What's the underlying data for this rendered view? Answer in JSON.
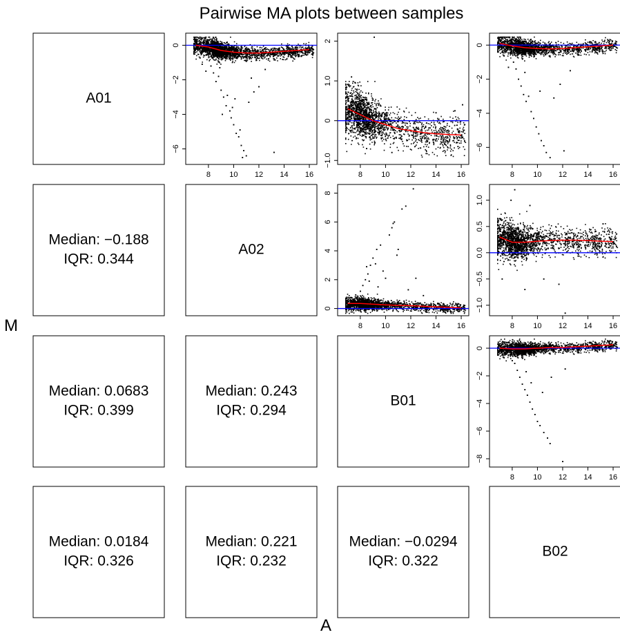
{
  "title": "Pairwise MA plots between samples",
  "xlabel": "A",
  "ylabel": "M",
  "samples": [
    "A01",
    "A02",
    "B01",
    "B02"
  ],
  "stats": [
    {
      "row": 1,
      "col": 0,
      "median": "Median: −0.188",
      "iqr": "IQR: 0.344"
    },
    {
      "row": 2,
      "col": 0,
      "median": "Median: 0.0683",
      "iqr": "IQR: 0.399"
    },
    {
      "row": 2,
      "col": 1,
      "median": "Median: 0.243",
      "iqr": "IQR: 0.294"
    },
    {
      "row": 3,
      "col": 0,
      "median": "Median: 0.0184",
      "iqr": "IQR: 0.326"
    },
    {
      "row": 3,
      "col": 1,
      "median": "Median: 0.221",
      "iqr": "IQR: 0.232"
    },
    {
      "row": 3,
      "col": 2,
      "median": "Median: −0.0294",
      "iqr": "IQR: 0.322"
    }
  ],
  "colors": {
    "points": "#000000",
    "loess": "#ff0000",
    "zero_line": "#0000ff",
    "frame": "#000000"
  },
  "chart_data": [
    {
      "type": "scatter",
      "panel": "A01 vs A02",
      "row": 0,
      "col": 1,
      "xlim": [
        6.2,
        16.6
      ],
      "ylim": [
        -6.9,
        0.7
      ],
      "x_ticks": [
        8,
        10,
        12,
        14,
        16
      ],
      "y_ticks": [
        0,
        -2,
        -4,
        -6
      ],
      "zero_line": 0,
      "loess": {
        "x": [
          7,
          8,
          9,
          10,
          11,
          12,
          13,
          14,
          15,
          16
        ],
        "y": [
          0.0,
          -0.1,
          -0.3,
          -0.4,
          -0.45,
          -0.45,
          -0.4,
          -0.35,
          -0.3,
          -0.25
        ]
      },
      "cloud": {
        "x_min": 6.8,
        "x_max": 16.3,
        "x_mode": 8.2,
        "center": -0.188,
        "spread": 0.34,
        "down_tail": -6.5,
        "up_tail": 0.5,
        "count": 2600
      },
      "outliers": [
        [
          8.2,
          -1.2
        ],
        [
          8.4,
          -1.6
        ],
        [
          8.6,
          -2.1
        ],
        [
          8.8,
          -1.8
        ],
        [
          9.0,
          -2.6
        ],
        [
          9.2,
          -3.0
        ],
        [
          9.4,
          -3.5
        ],
        [
          9.5,
          -2.9
        ],
        [
          9.7,
          -3.8
        ],
        [
          9.8,
          -4.2
        ],
        [
          9.9,
          -3.6
        ],
        [
          10.0,
          -4.6
        ],
        [
          10.2,
          -5.1
        ],
        [
          10.4,
          -5.3
        ],
        [
          10.5,
          -4.9
        ],
        [
          10.6,
          -5.8
        ],
        [
          10.8,
          -6.1
        ],
        [
          11.0,
          -6.4
        ],
        [
          11.2,
          -3.3
        ],
        [
          11.6,
          -2.7
        ],
        [
          12.0,
          -2.4
        ],
        [
          13.2,
          -6.2
        ],
        [
          10.1,
          -3.1
        ],
        [
          9.1,
          -4.0
        ],
        [
          11.4,
          -1.9
        ],
        [
          12.5,
          -1.4
        ],
        [
          8.9,
          -1.3
        ],
        [
          10.7,
          -6.5
        ],
        [
          7.8,
          -1.5
        ],
        [
          7.5,
          -1.1
        ]
      ]
    },
    {
      "type": "scatter",
      "panel": "A01 vs B01",
      "row": 0,
      "col": 2,
      "xlim": [
        6.2,
        16.6
      ],
      "ylim": [
        -1.1,
        2.2
      ],
      "x_ticks": [
        8,
        10,
        12,
        14,
        16
      ],
      "y_ticks": [
        -1.0,
        0.0,
        1.0,
        2.0
      ],
      "zero_line": 0,
      "loess": {
        "x": [
          7,
          8,
          9,
          10,
          11,
          12,
          13,
          14,
          15,
          16
        ],
        "y": [
          0.3,
          0.15,
          0.0,
          -0.1,
          -0.2,
          -0.25,
          -0.3,
          -0.33,
          -0.35,
          -0.36
        ]
      },
      "cloud": {
        "x_min": 6.8,
        "x_max": 16.3,
        "x_mode": 7.6,
        "center": 0.0683,
        "spread": 0.4,
        "down_tail": -0.9,
        "up_tail": 1.0,
        "count": 2600
      },
      "outliers": [
        [
          9.1,
          2.1
        ],
        [
          7.3,
          1.1
        ],
        [
          7.6,
          0.95
        ],
        [
          14.0,
          0.2
        ],
        [
          15.5,
          0.25
        ],
        [
          16.1,
          0.4
        ],
        [
          10.5,
          -0.8
        ],
        [
          8.5,
          -0.7
        ]
      ]
    },
    {
      "type": "scatter",
      "panel": "A01 vs B02",
      "row": 0,
      "col": 3,
      "xlim": [
        6.2,
        16.6
      ],
      "ylim": [
        -7.0,
        0.7
      ],
      "x_ticks": [
        8,
        10,
        12,
        14,
        16
      ],
      "y_ticks": [
        0,
        -2,
        -4,
        -6
      ],
      "zero_line": 0,
      "loess": {
        "x": [
          7,
          8,
          9,
          10,
          11,
          12,
          13,
          14,
          15,
          16
        ],
        "y": [
          0.1,
          -0.05,
          -0.15,
          -0.2,
          -0.22,
          -0.2,
          -0.15,
          -0.1,
          -0.05,
          0.0
        ]
      },
      "cloud": {
        "x_min": 6.8,
        "x_max": 16.3,
        "x_mode": 8.2,
        "center": 0.0184,
        "spread": 0.33,
        "down_tail": -6.5,
        "up_tail": 0.5,
        "count": 2600
      },
      "outliers": [
        [
          8.1,
          -1.0
        ],
        [
          8.3,
          -1.4
        ],
        [
          8.5,
          -2.0
        ],
        [
          8.7,
          -2.4
        ],
        [
          8.9,
          -2.9
        ],
        [
          9.1,
          -3.3
        ],
        [
          9.3,
          -3.0
        ],
        [
          9.5,
          -3.9
        ],
        [
          9.7,
          -4.3
        ],
        [
          9.9,
          -4.8
        ],
        [
          10.1,
          -5.2
        ],
        [
          10.3,
          -5.6
        ],
        [
          10.5,
          -5.9
        ],
        [
          10.7,
          -6.3
        ],
        [
          11.0,
          -6.6
        ],
        [
          12.1,
          -6.2
        ],
        [
          11.3,
          -3.1
        ],
        [
          11.8,
          -2.3
        ],
        [
          10.2,
          -2.7
        ],
        [
          9.0,
          -1.6
        ],
        [
          12.6,
          -1.5
        ],
        [
          7.7,
          -1.3
        ]
      ]
    },
    {
      "type": "scatter",
      "panel": "A02 vs B01",
      "row": 1,
      "col": 2,
      "xlim": [
        6.2,
        16.6
      ],
      "ylim": [
        -0.5,
        8.6
      ],
      "x_ticks": [
        8,
        10,
        12,
        14,
        16
      ],
      "y_ticks": [
        0,
        2,
        4,
        6,
        8
      ],
      "zero_line": 0,
      "loess": {
        "x": [
          7,
          8,
          9,
          10,
          11,
          12,
          13,
          14,
          15,
          16
        ],
        "y": [
          0.35,
          0.35,
          0.3,
          0.25,
          0.22,
          0.2,
          0.15,
          0.12,
          0.08,
          0.05
        ]
      },
      "cloud": {
        "x_min": 6.8,
        "x_max": 16.3,
        "x_mode": 7.8,
        "center": 0.243,
        "spread": 0.29,
        "down_tail": -0.3,
        "up_tail": 1.8,
        "count": 2600
      },
      "outliers": [
        [
          8.0,
          1.2
        ],
        [
          8.2,
          1.6
        ],
        [
          8.4,
          2.0
        ],
        [
          8.6,
          2.4
        ],
        [
          8.8,
          3.0
        ],
        [
          9.0,
          3.5
        ],
        [
          9.2,
          3.1
        ],
        [
          9.3,
          4.1
        ],
        [
          8.5,
          2.9
        ],
        [
          9.6,
          4.4
        ],
        [
          9.8,
          2.6
        ],
        [
          10.3,
          5.1
        ],
        [
          10.5,
          5.6
        ],
        [
          10.7,
          6.0
        ],
        [
          10.6,
          5.9
        ],
        [
          11.3,
          6.9
        ],
        [
          11.6,
          7.1
        ],
        [
          12.2,
          8.3
        ],
        [
          11.0,
          4.1
        ],
        [
          10.0,
          2.1
        ],
        [
          12.4,
          2.1
        ],
        [
          8.7,
          1.9
        ],
        [
          9.4,
          1.5
        ],
        [
          13.0,
          0.9
        ],
        [
          10.9,
          3.7
        ],
        [
          11.8,
          1.3
        ]
      ]
    },
    {
      "type": "scatter",
      "panel": "A02 vs B02",
      "row": 1,
      "col": 3,
      "xlim": [
        6.2,
        16.6
      ],
      "ylim": [
        -1.2,
        1.3
      ],
      "x_ticks": [
        8,
        10,
        12,
        14,
        16
      ],
      "y_ticks": [
        -1.0,
        -0.5,
        0.0,
        0.5,
        1.0
      ],
      "zero_line": 0,
      "loess": {
        "x": [
          7,
          8,
          9,
          10,
          11,
          12,
          13,
          14,
          15,
          16
        ],
        "y": [
          0.3,
          0.2,
          0.2,
          0.22,
          0.23,
          0.24,
          0.24,
          0.23,
          0.22,
          0.21
        ]
      },
      "cloud": {
        "x_min": 6.8,
        "x_max": 16.3,
        "x_mode": 7.6,
        "center": 0.221,
        "spread": 0.23,
        "down_tail": -0.7,
        "up_tail": 1.0,
        "count": 2600
      },
      "outliers": [
        [
          8.2,
          1.2
        ],
        [
          7.9,
          1.0
        ],
        [
          9.4,
          0.9
        ],
        [
          10.5,
          -0.5
        ],
        [
          11.7,
          -0.6
        ],
        [
          12.2,
          -1.15
        ],
        [
          15.2,
          0.55
        ],
        [
          7.2,
          -0.5
        ],
        [
          9.0,
          -0.7
        ]
      ]
    },
    {
      "type": "scatter",
      "panel": "B01 vs B02",
      "row": 2,
      "col": 3,
      "xlim": [
        6.2,
        16.6
      ],
      "ylim": [
        -8.6,
        0.9
      ],
      "x_ticks": [
        8,
        10,
        12,
        14,
        16
      ],
      "y_ticks": [
        0,
        -2,
        -4,
        -6,
        -8
      ],
      "zero_line": 0,
      "loess": {
        "x": [
          7,
          8,
          9,
          10,
          11,
          12,
          13,
          14,
          15,
          16
        ],
        "y": [
          0.0,
          -0.05,
          -0.05,
          0.0,
          0.05,
          0.05,
          0.1,
          0.15,
          0.2,
          0.25
        ]
      },
      "cloud": {
        "x_min": 6.8,
        "x_max": 16.3,
        "x_mode": 8.2,
        "center": -0.0294,
        "spread": 0.32,
        "down_tail": -8.2,
        "up_tail": 0.7,
        "count": 2600
      },
      "outliers": [
        [
          8.2,
          -1.1
        ],
        [
          8.4,
          -1.6
        ],
        [
          8.6,
          -2.1
        ],
        [
          8.8,
          -2.6
        ],
        [
          9.0,
          -3.0
        ],
        [
          9.2,
          -3.4
        ],
        [
          9.4,
          -3.9
        ],
        [
          9.6,
          -4.4
        ],
        [
          9.8,
          -4.8
        ],
        [
          10.0,
          -5.3
        ],
        [
          10.2,
          -5.6
        ],
        [
          10.5,
          -6.1
        ],
        [
          10.8,
          -6.5
        ],
        [
          11.0,
          -6.9
        ],
        [
          12.0,
          -8.2
        ],
        [
          9.5,
          -2.5
        ],
        [
          10.4,
          -3.2
        ],
        [
          11.1,
          -2.1
        ],
        [
          9.1,
          -1.7
        ],
        [
          12.2,
          -1.5
        ],
        [
          8.0,
          -0.9
        ]
      ]
    }
  ]
}
